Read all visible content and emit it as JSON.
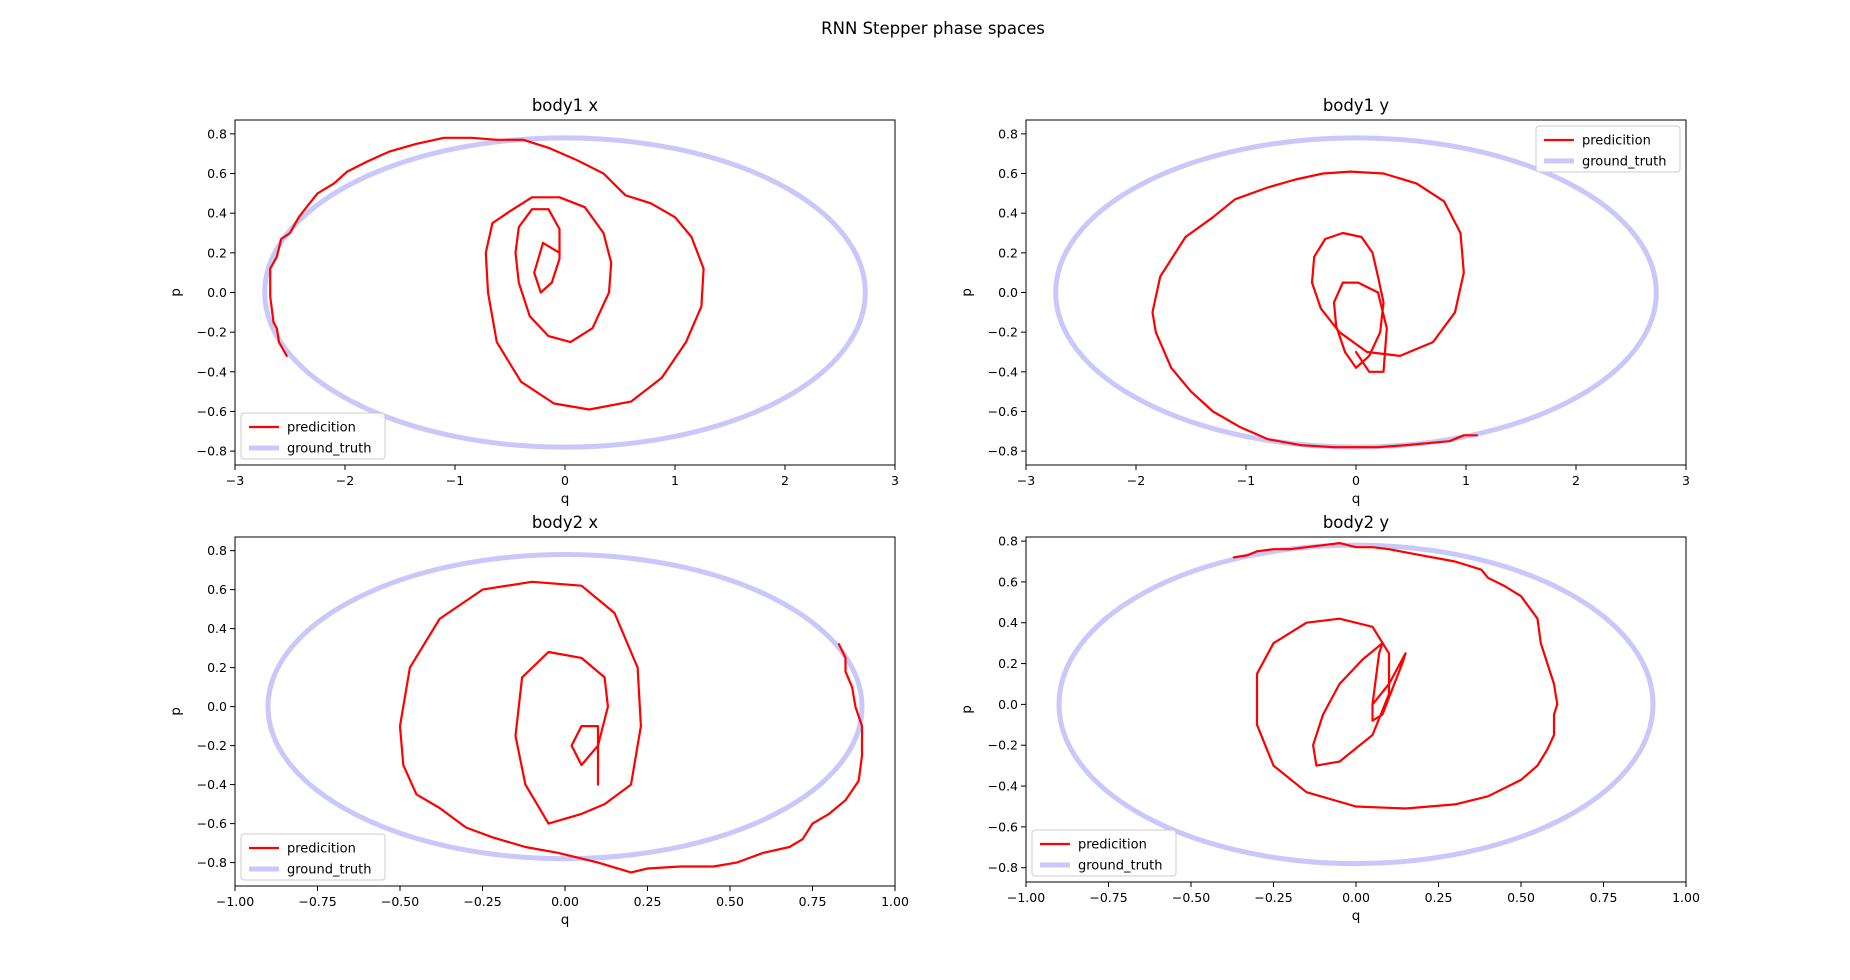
{
  "figure": {
    "suptitle": "RNN Stepper phase spaces",
    "colors": {
      "prediction": "#ff0000",
      "ground_truth": "#c8c8fa",
      "overlap": "#c8003c"
    }
  },
  "chart_data": [
    {
      "type": "line",
      "title": "body1 x",
      "xlabel": "q",
      "ylabel": "p",
      "xlim": [
        -3,
        3
      ],
      "ylim": [
        -0.87,
        0.87
      ],
      "xticks": [
        -3,
        -2,
        -1,
        0,
        1,
        2,
        3
      ],
      "xtick_labels": [
        "−3",
        "−2",
        "−1",
        "0",
        "1",
        "2",
        "3"
      ],
      "yticks": [
        -0.8,
        -0.6,
        -0.4,
        -0.2,
        0.0,
        0.2,
        0.4,
        0.6,
        0.8
      ],
      "ytick_labels": [
        "−0.8",
        "−0.6",
        "−0.4",
        "−0.2",
        "0.0",
        "0.2",
        "0.4",
        "0.6",
        "0.8"
      ],
      "grid": false,
      "legend": {
        "placement": "lower left",
        "entries": [
          "predicition",
          "ground_truth"
        ]
      },
      "series": [
        {
          "name": "predicition",
          "x": [
            -2.53,
            -2.6,
            -2.62,
            -2.65,
            -2.68,
            -2.68,
            -2.62,
            -2.58,
            -2.5,
            -2.42,
            -2.35,
            -2.25,
            -2.1,
            -1.98,
            -1.8,
            -1.6,
            -1.35,
            -1.1,
            -0.85,
            -0.62,
            -0.38,
            -0.15,
            0.1,
            0.35,
            0.55,
            0.78,
            1.0,
            1.15,
            1.26,
            1.24,
            1.1,
            0.88,
            0.6,
            0.22,
            -0.1,
            -0.4,
            -0.62,
            -0.7,
            -0.72,
            -0.66,
            -0.5,
            -0.3,
            -0.05,
            0.18,
            0.35,
            0.42,
            0.4,
            0.25,
            0.05,
            -0.15,
            -0.32,
            -0.42,
            -0.45,
            -0.42,
            -0.3,
            -0.15,
            -0.05,
            -0.05,
            -0.12,
            -0.22,
            -0.28,
            -0.2,
            -0.05
          ],
          "y": [
            -0.32,
            -0.25,
            -0.18,
            -0.15,
            -0.02,
            0.12,
            0.18,
            0.27,
            0.3,
            0.38,
            0.43,
            0.5,
            0.55,
            0.61,
            0.66,
            0.71,
            0.75,
            0.78,
            0.78,
            0.77,
            0.77,
            0.73,
            0.67,
            0.6,
            0.49,
            0.45,
            0.38,
            0.28,
            0.12,
            -0.07,
            -0.25,
            -0.43,
            -0.55,
            -0.59,
            -0.56,
            -0.45,
            -0.25,
            0.0,
            0.2,
            0.35,
            0.41,
            0.48,
            0.48,
            0.43,
            0.3,
            0.15,
            -0.0,
            -0.18,
            -0.25,
            -0.22,
            -0.12,
            0.05,
            0.2,
            0.33,
            0.42,
            0.42,
            0.32,
            0.17,
            0.05,
            0.0,
            0.1,
            0.25,
            0.2
          ]
        },
        {
          "name": "ground_truth",
          "ellipse": {
            "cx": 0.0,
            "cy": 0.0,
            "rx": 2.73,
            "ry": 0.78
          }
        }
      ]
    },
    {
      "type": "line",
      "title": "body1 y",
      "xlabel": "q",
      "ylabel": "p",
      "xlim": [
        -3,
        3
      ],
      "ylim": [
        -0.87,
        0.87
      ],
      "xticks": [
        -3,
        -2,
        -1,
        0,
        1,
        2,
        3
      ],
      "xtick_labels": [
        "−3",
        "−2",
        "−1",
        "0",
        "1",
        "2",
        "3"
      ],
      "yticks": [
        -0.8,
        -0.6,
        -0.4,
        -0.2,
        0.0,
        0.2,
        0.4,
        0.6,
        0.8
      ],
      "ytick_labels": [
        "−0.8",
        "−0.6",
        "−0.4",
        "−0.2",
        "0.0",
        "0.2",
        "0.4",
        "0.6",
        "0.8"
      ],
      "grid": false,
      "legend": {
        "placement": "upper right",
        "entries": [
          "predicition",
          "ground_truth"
        ]
      },
      "series": [
        {
          "name": "predicition",
          "x": [
            1.1,
            0.98,
            0.85,
            0.65,
            0.45,
            0.2,
            0.0,
            -0.2,
            -0.5,
            -0.8,
            -1.05,
            -1.3,
            -1.5,
            -1.68,
            -1.82,
            -1.85,
            -1.78,
            -1.55,
            -1.3,
            -1.1,
            -0.8,
            -0.55,
            -0.3,
            -0.05,
            0.25,
            0.55,
            0.8,
            0.95,
            0.98,
            0.9,
            0.7,
            0.4,
            0.1,
            -0.15,
            -0.32,
            -0.4,
            -0.38,
            -0.28,
            -0.12,
            0.05,
            0.15,
            0.2,
            0.25,
            0.22,
            0.12,
            0.0,
            -0.1,
            -0.18,
            -0.2,
            -0.12,
            0.02,
            0.2,
            0.28,
            0.25,
            0.12,
            0.0
          ],
          "y": [
            -0.72,
            -0.72,
            -0.75,
            -0.76,
            -0.77,
            -0.78,
            -0.78,
            -0.78,
            -0.77,
            -0.74,
            -0.68,
            -0.6,
            -0.5,
            -0.38,
            -0.2,
            -0.1,
            0.08,
            0.28,
            0.38,
            0.47,
            0.53,
            0.57,
            0.6,
            0.61,
            0.6,
            0.55,
            0.46,
            0.3,
            0.1,
            -0.1,
            -0.25,
            -0.32,
            -0.3,
            -0.2,
            -0.08,
            0.05,
            0.18,
            0.27,
            0.3,
            0.28,
            0.2,
            0.08,
            -0.05,
            -0.2,
            -0.32,
            -0.38,
            -0.3,
            -0.17,
            -0.05,
            0.05,
            0.05,
            -0.0,
            -0.18,
            -0.4,
            -0.4,
            -0.3
          ]
        },
        {
          "name": "ground_truth",
          "ellipse": {
            "cx": 0.0,
            "cy": 0.0,
            "rx": 2.73,
            "ry": 0.78
          }
        }
      ]
    },
    {
      "type": "line",
      "title": "body2 x",
      "xlabel": "q",
      "ylabel": "p",
      "xlim": [
        -1.0,
        1.0
      ],
      "ylim": [
        -0.92,
        0.87
      ],
      "xticks": [
        -1.0,
        -0.75,
        -0.5,
        -0.25,
        0.0,
        0.25,
        0.5,
        0.75,
        1.0
      ],
      "xtick_labels": [
        "−1.00",
        "−0.75",
        "−0.50",
        "−0.25",
        "0.00",
        "0.25",
        "0.50",
        "0.75",
        "1.00"
      ],
      "yticks": [
        -0.8,
        -0.6,
        -0.4,
        -0.2,
        0.0,
        0.2,
        0.4,
        0.6,
        0.8
      ],
      "ytick_labels": [
        "−0.8",
        "−0.6",
        "−0.4",
        "−0.2",
        "0.0",
        "0.2",
        "0.4",
        "0.6",
        "0.8"
      ],
      "grid": false,
      "legend": {
        "placement": "lower left",
        "entries": [
          "predicition",
          "ground_truth"
        ]
      },
      "series": [
        {
          "name": "predicition",
          "x": [
            0.83,
            0.85,
            0.85,
            0.87,
            0.88,
            0.9,
            0.9,
            0.89,
            0.85,
            0.8,
            0.75,
            0.72,
            0.68,
            0.6,
            0.52,
            0.45,
            0.35,
            0.25,
            0.2,
            0.1,
            -0.02,
            -0.12,
            -0.22,
            -0.3,
            -0.38,
            -0.45,
            -0.49,
            -0.5,
            -0.47,
            -0.38,
            -0.25,
            -0.1,
            0.05,
            0.15,
            0.22,
            0.23,
            0.2,
            0.12,
            0.05,
            -0.05,
            -0.12,
            -0.15,
            -0.13,
            -0.05,
            0.05,
            0.12,
            0.13,
            0.1,
            0.05,
            0.02,
            0.05,
            0.1,
            0.1
          ],
          "y": [
            0.32,
            0.25,
            0.18,
            0.1,
            0.0,
            -0.1,
            -0.25,
            -0.38,
            -0.48,
            -0.55,
            -0.6,
            -0.68,
            -0.72,
            -0.75,
            -0.8,
            -0.82,
            -0.82,
            -0.83,
            -0.85,
            -0.8,
            -0.75,
            -0.72,
            -0.67,
            -0.62,
            -0.52,
            -0.45,
            -0.3,
            -0.1,
            0.2,
            0.45,
            0.6,
            0.64,
            0.62,
            0.48,
            0.2,
            -0.1,
            -0.4,
            -0.5,
            -0.55,
            -0.6,
            -0.4,
            -0.15,
            0.15,
            0.28,
            0.25,
            0.15,
            0.0,
            -0.2,
            -0.3,
            -0.2,
            -0.1,
            -0.1,
            -0.4
          ]
        },
        {
          "name": "ground_truth",
          "ellipse": {
            "cx": 0.0,
            "cy": 0.0,
            "rx": 0.9,
            "ry": 0.78
          }
        }
      ]
    },
    {
      "type": "line",
      "title": "body2 y",
      "xlabel": "q",
      "ylabel": "p",
      "xlim": [
        -1.0,
        1.0
      ],
      "ylim": [
        -0.87,
        0.82
      ],
      "xticks": [
        -1.0,
        -0.75,
        -0.5,
        -0.25,
        0.0,
        0.25,
        0.5,
        0.75,
        1.0
      ],
      "xtick_labels": [
        "−1.00",
        "−0.75",
        "−0.50",
        "−0.25",
        "0.00",
        "0.25",
        "0.50",
        "0.75",
        "1.00"
      ],
      "yticks": [
        -0.8,
        -0.6,
        -0.4,
        -0.2,
        0.0,
        0.2,
        0.4,
        0.6,
        0.8
      ],
      "ytick_labels": [
        "−0.8",
        "−0.6",
        "−0.4",
        "−0.2",
        "0.0",
        "0.2",
        "0.4",
        "0.6",
        "0.8"
      ],
      "grid": false,
      "legend": {
        "placement": "lower left",
        "entries": [
          "predicition",
          "ground_truth"
        ]
      },
      "series": [
        {
          "name": "predicition",
          "x": [
            -0.37,
            -0.33,
            -0.3,
            -0.25,
            -0.2,
            -0.15,
            -0.1,
            -0.05,
            0.0,
            0.05,
            0.1,
            0.2,
            0.3,
            0.38,
            0.4,
            0.45,
            0.5,
            0.55,
            0.56,
            0.58,
            0.6,
            0.61,
            0.6,
            0.6,
            0.58,
            0.55,
            0.5,
            0.4,
            0.3,
            0.15,
            0.0,
            -0.15,
            -0.25,
            -0.3,
            -0.3,
            -0.25,
            -0.15,
            -0.05,
            0.05,
            0.1,
            0.1,
            0.05,
            -0.05,
            -0.12,
            -0.13,
            -0.1,
            -0.05,
            0.02,
            0.08,
            0.07,
            0.05,
            0.1,
            0.15,
            0.14,
            0.08,
            0.05,
            0.05
          ],
          "y": [
            0.72,
            0.73,
            0.75,
            0.76,
            0.76,
            0.77,
            0.78,
            0.79,
            0.77,
            0.77,
            0.76,
            0.73,
            0.7,
            0.66,
            0.62,
            0.58,
            0.53,
            0.42,
            0.3,
            0.2,
            0.1,
            0.0,
            -0.05,
            -0.15,
            -0.22,
            -0.3,
            -0.37,
            -0.45,
            -0.49,
            -0.51,
            -0.5,
            -0.43,
            -0.3,
            -0.1,
            0.15,
            0.3,
            0.4,
            0.42,
            0.38,
            0.25,
            0.05,
            -0.15,
            -0.28,
            -0.3,
            -0.2,
            -0.05,
            0.1,
            0.22,
            0.3,
            0.25,
            0.0,
            0.1,
            0.25,
            0.2,
            -0.05,
            -0.08,
            0.0
          ]
        },
        {
          "name": "ground_truth",
          "ellipse": {
            "cx": 0.0,
            "cy": 0.0,
            "rx": 0.9,
            "ry": 0.78
          }
        }
      ]
    }
  ]
}
